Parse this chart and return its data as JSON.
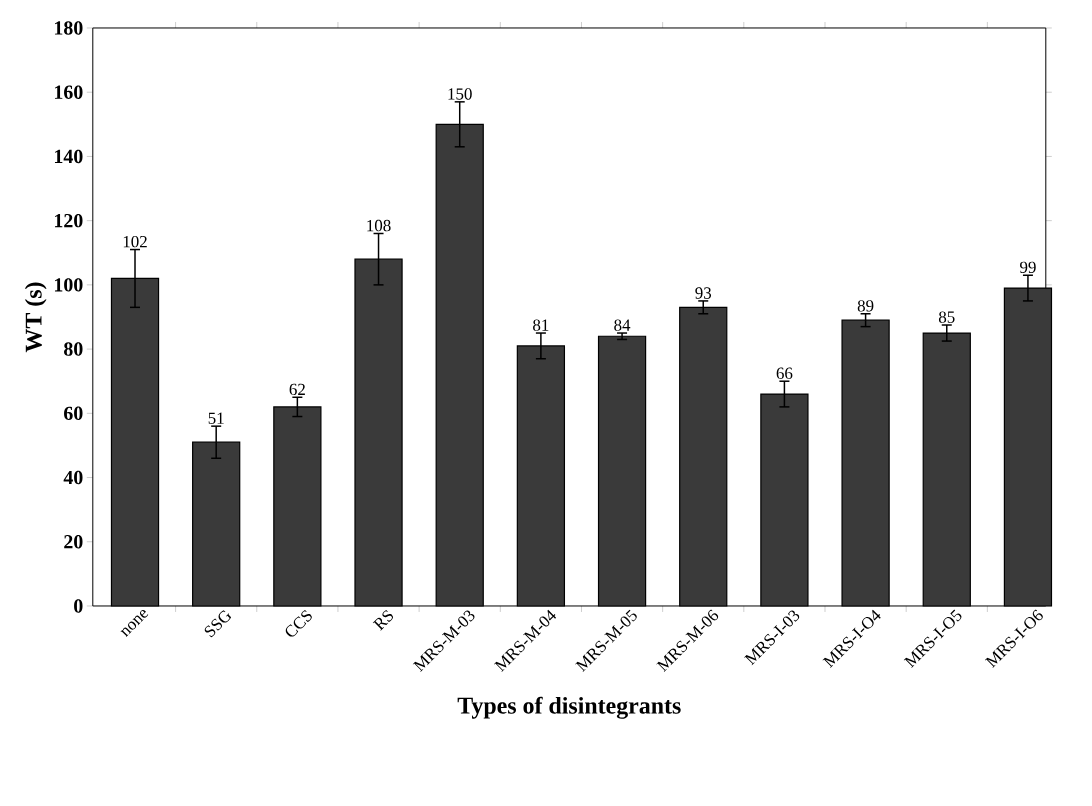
{
  "chart_data": {
    "type": "bar",
    "xlabel": "Types of disintegrants",
    "ylabel": "WT (s)",
    "categories": [
      "none",
      "SSG",
      "CCS",
      "RS",
      "MRS-M-03",
      "MRS-M-04",
      "MRS-M-05",
      "MRS-M-06",
      "MRS-I-03",
      "MRS-I-O4",
      "MRS-I-O5",
      "MRS-I-O6"
    ],
    "values": [
      102,
      51,
      62,
      108,
      150,
      81,
      84,
      93,
      66,
      89,
      85,
      99
    ],
    "errors": [
      9,
      5,
      3,
      8,
      7,
      4,
      1,
      2,
      4,
      2,
      2.5,
      4
    ],
    "color": "#3a3a3a",
    "data_labels": true,
    "ylim": [
      0,
      180
    ],
    "yticks": [
      0,
      20,
      40,
      60,
      80,
      100,
      120,
      140,
      160,
      180
    ]
  }
}
